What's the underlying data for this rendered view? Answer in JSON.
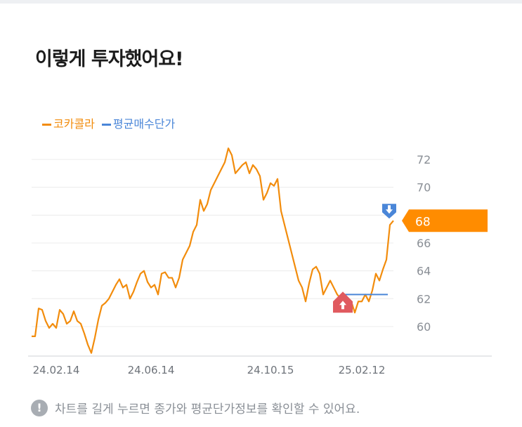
{
  "title": "이렇게 투자했어요!",
  "chart_data": {
    "type": "line",
    "legend": [
      {
        "name": "코카콜라",
        "color": "#f28c0c"
      },
      {
        "name": "평균매수단가",
        "color": "#4a86d8"
      }
    ],
    "legend_position": "top-left",
    "yticks": [
      60,
      62,
      64,
      66,
      68,
      70,
      72
    ],
    "ylim": [
      58,
      73
    ],
    "grid": true,
    "xticks": [
      {
        "label": "24.02.14",
        "index": 7
      },
      {
        "label": "24.06.14",
        "index": 34
      },
      {
        "label": "24.10.15",
        "index": 68
      },
      {
        "label": "25.02.12",
        "index": 94
      }
    ],
    "series": [
      {
        "name": "코카콜라",
        "values": [
          59.3,
          59.3,
          61.3,
          61.2,
          60.4,
          59.9,
          60.2,
          59.9,
          61.2,
          60.9,
          60.2,
          60.4,
          61.1,
          60.4,
          60.2,
          59.5,
          58.7,
          58.1,
          59.2,
          60.5,
          61.5,
          61.7,
          62.0,
          62.5,
          63.0,
          63.4,
          62.8,
          63.0,
          62.0,
          62.5,
          63.2,
          63.8,
          64.0,
          63.2,
          62.8,
          63.0,
          62.3,
          63.8,
          63.9,
          63.5,
          63.5,
          62.8,
          63.5,
          64.8,
          65.3,
          65.8,
          66.8,
          67.3,
          69.1,
          68.3,
          68.8,
          69.8,
          70.3,
          70.8,
          71.3,
          71.8,
          72.8,
          72.3,
          71.0,
          71.3,
          71.6,
          71.8,
          71.0,
          71.6,
          71.3,
          70.8,
          69.1,
          69.6,
          70.3,
          70.1,
          70.6,
          68.3,
          67.3,
          66.3,
          65.3,
          64.3,
          63.3,
          62.8,
          61.8,
          63.1,
          64.1,
          64.3,
          63.8,
          62.3,
          62.8,
          63.3,
          62.8,
          62.3,
          62.0,
          61.8,
          62.0,
          61.8,
          61.0,
          61.8,
          61.8,
          62.3,
          61.8,
          62.6,
          63.8,
          63.3,
          64.1,
          64.8,
          67.3,
          67.6
        ]
      }
    ],
    "average_price": {
      "name": "평균매수단가",
      "value": 62.3,
      "from_index": 88
    },
    "current_price_label": "68",
    "markers": [
      {
        "type": "buy",
        "icon": "arrow-up-icon",
        "index": 89,
        "color": "#e05a5f"
      },
      {
        "type": "sell",
        "icon": "arrow-down-icon",
        "index": 102,
        "color": "#4a86d8"
      }
    ],
    "accent": "#ff8c00"
  },
  "note": {
    "icon": "exclamation-icon",
    "text": "차트를 길게 누르면 종가와 평균단가정보를 확인할 수 있어요."
  }
}
